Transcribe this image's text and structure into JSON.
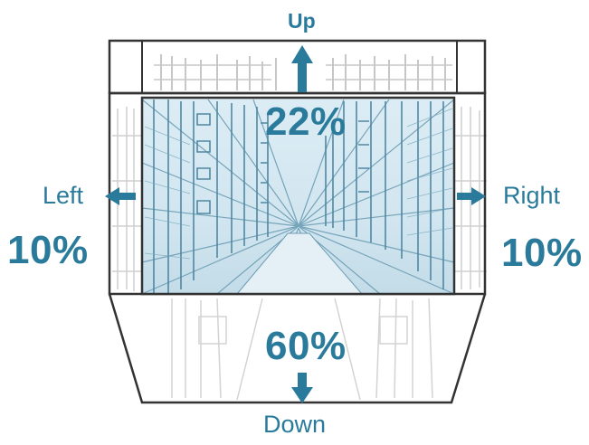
{
  "diagram": {
    "directions": {
      "up": {
        "label": "Up",
        "percent": "22%"
      },
      "left": {
        "label": "Left",
        "percent": "10%"
      },
      "right": {
        "label": "Right",
        "percent": "10%"
      },
      "down": {
        "label": "Down",
        "percent": "60%"
      }
    },
    "colors": {
      "accent": "#2a7b9b",
      "frame": "#333333",
      "window_tint": "#d7eaf3",
      "sketch_line": "#6d9db4"
    },
    "icons": [
      "arrow-up-icon",
      "arrow-left-icon",
      "arrow-right-icon",
      "arrow-down-icon"
    ]
  }
}
